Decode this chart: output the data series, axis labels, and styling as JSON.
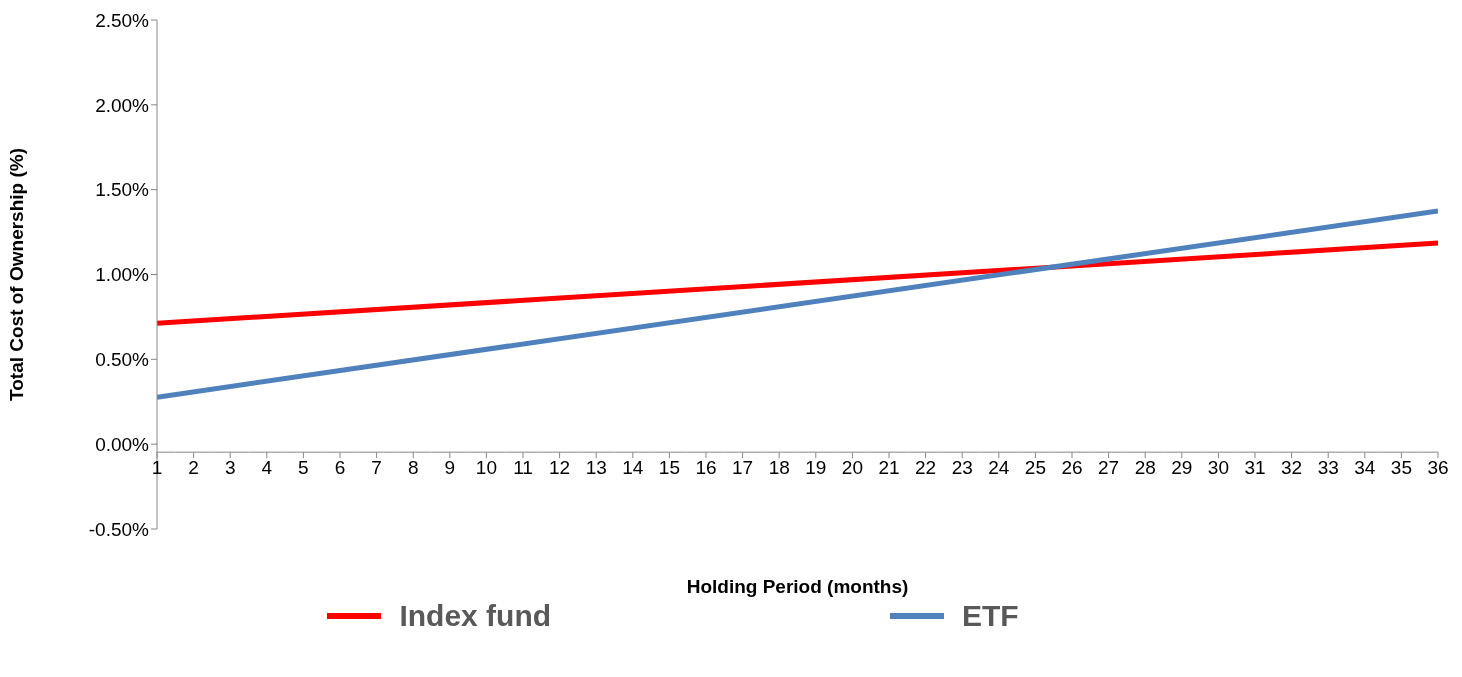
{
  "chart_data": {
    "type": "line",
    "xlabel": "Holding Period (months)",
    "ylabel": "Total Cost of Ownership (%)",
    "x": [
      1,
      36
    ],
    "series": [
      {
        "name": "Index fund",
        "color": "#ff0000",
        "values": [
          0.713,
          1.185
        ]
      },
      {
        "name": "ETF",
        "color": "#4f81bd",
        "values": [
          0.277,
          1.374
        ]
      }
    ],
    "xlim": [
      1,
      36
    ],
    "xticks": [
      1,
      2,
      3,
      4,
      5,
      6,
      7,
      8,
      9,
      10,
      11,
      12,
      13,
      14,
      15,
      16,
      17,
      18,
      19,
      20,
      21,
      22,
      23,
      24,
      25,
      26,
      27,
      28,
      29,
      30,
      31,
      32,
      33,
      34,
      35,
      36
    ],
    "ylim": [
      -0.5,
      2.5
    ],
    "yticks": [
      {
        "value": -0.5,
        "label": "-0.50%"
      },
      {
        "value": 0,
        "label": "0.00%"
      },
      {
        "value": 0.5,
        "label": "0.50%"
      },
      {
        "value": 1,
        "label": "1.00%"
      },
      {
        "value": 1.5,
        "label": "1.50%"
      },
      {
        "value": 2,
        "label": "2.00%"
      },
      {
        "value": 2.5,
        "label": "2.50%"
      }
    ],
    "grid": false,
    "legend": "bottom",
    "marker": "none",
    "line_style": "solid"
  }
}
